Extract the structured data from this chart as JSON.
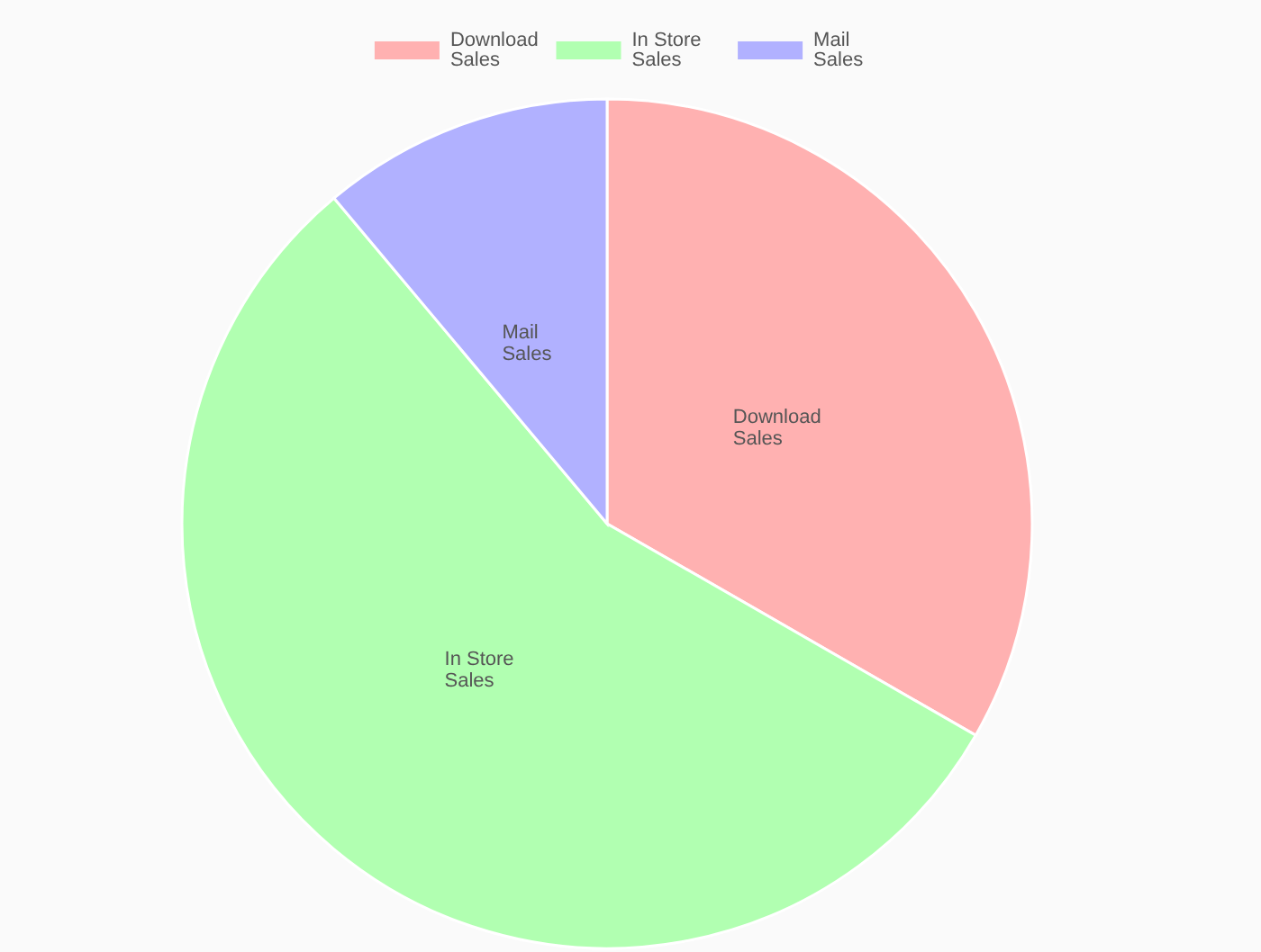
{
  "chart_data": {
    "type": "pie",
    "categories": [
      "Download Sales",
      "In Store Sales",
      "Mail Sales"
    ],
    "values": [
      33.3,
      55.6,
      11.1
    ],
    "colors": [
      "#ffb1b1",
      "#b1ffb1",
      "#b1b1ff"
    ],
    "legend": "top",
    "data_labels": false
  }
}
